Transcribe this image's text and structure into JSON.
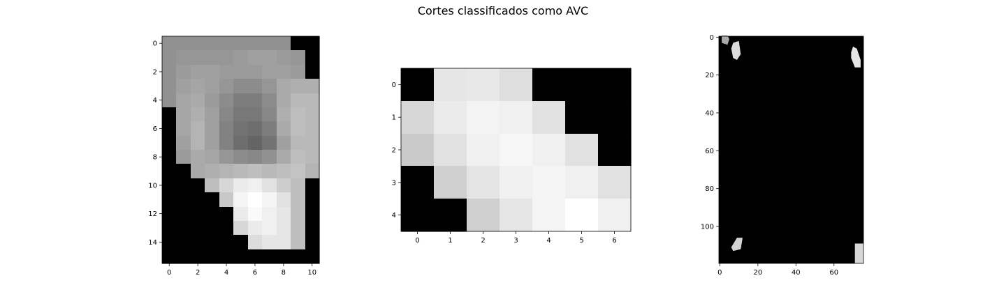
{
  "title": "Cortes classificados como AVC",
  "chart_data": [
    {
      "type": "heatmap",
      "panel": "left",
      "rows": 16,
      "cols": 11,
      "xlim": [
        -0.5,
        10.5
      ],
      "ylim": [
        -0.5,
        15.5
      ],
      "xticks": [
        "0",
        "2",
        "4",
        "6",
        "8",
        "10"
      ],
      "yticks": [
        "0",
        "2",
        "4",
        "6",
        "8",
        "10",
        "12",
        "14"
      ],
      "colormap": "gray",
      "values": [
        [
          145,
          145,
          145,
          145,
          145,
          145,
          145,
          145,
          145,
          0,
          0
        ],
        [
          145,
          150,
          150,
          150,
          150,
          155,
          160,
          160,
          155,
          150,
          0
        ],
        [
          145,
          155,
          160,
          160,
          155,
          155,
          155,
          160,
          160,
          155,
          0
        ],
        [
          145,
          160,
          165,
          160,
          150,
          140,
          140,
          150,
          170,
          175,
          175
        ],
        [
          145,
          165,
          170,
          155,
          140,
          125,
          125,
          140,
          170,
          185,
          185
        ],
        [
          0,
          165,
          175,
          160,
          135,
          120,
          120,
          135,
          175,
          190,
          185
        ],
        [
          0,
          165,
          180,
          160,
          130,
          115,
          110,
          125,
          170,
          190,
          185
        ],
        [
          0,
          160,
          180,
          160,
          130,
          110,
          100,
          115,
          160,
          185,
          185
        ],
        [
          0,
          155,
          170,
          165,
          150,
          140,
          135,
          145,
          170,
          190,
          185
        ],
        [
          0,
          0,
          170,
          175,
          180,
          185,
          190,
          185,
          190,
          195,
          180
        ],
        [
          0,
          0,
          0,
          190,
          215,
          235,
          240,
          225,
          205,
          190,
          0
        ],
        [
          0,
          0,
          0,
          0,
          200,
          245,
          255,
          245,
          225,
          190,
          0
        ],
        [
          0,
          0,
          0,
          0,
          0,
          235,
          250,
          240,
          230,
          190,
          0
        ],
        [
          0,
          0,
          0,
          0,
          0,
          215,
          235,
          240,
          230,
          190,
          0
        ],
        [
          0,
          0,
          0,
          0,
          0,
          0,
          220,
          230,
          230,
          190,
          0
        ],
        [
          0,
          0,
          0,
          0,
          0,
          0,
          0,
          0,
          0,
          0,
          0
        ]
      ]
    },
    {
      "type": "heatmap",
      "panel": "middle",
      "rows": 5,
      "cols": 7,
      "xlim": [
        -0.5,
        6.5
      ],
      "ylim": [
        -0.5,
        4.5
      ],
      "xticks": [
        "0",
        "1",
        "2",
        "3",
        "4",
        "5",
        "6"
      ],
      "yticks": [
        "0",
        "1",
        "2",
        "3",
        "4"
      ],
      "colormap": "gray",
      "values": [
        [
          0,
          230,
          232,
          222,
          0,
          0,
          0
        ],
        [
          215,
          235,
          243,
          240,
          225,
          0,
          0
        ],
        [
          202,
          225,
          240,
          246,
          240,
          225,
          0
        ],
        [
          0,
          208,
          228,
          240,
          245,
          240,
          225
        ],
        [
          0,
          0,
          208,
          230,
          245,
          255,
          240
        ]
      ]
    },
    {
      "type": "heatmap",
      "panel": "right",
      "rows": 120,
      "cols": 76,
      "xlim": [
        -0.5,
        75.5
      ],
      "ylim": [
        -0.5,
        119.5
      ],
      "xticks": [
        "0",
        "20",
        "40",
        "60"
      ],
      "yticks": [
        "0",
        "20",
        "40",
        "60",
        "80",
        "100"
      ],
      "colormap": "gray",
      "background": 0,
      "blobs": [
        {
          "shape": [
            [
              1,
              -1
            ],
            [
              4,
              -1
            ],
            [
              5,
              1
            ],
            [
              4,
              4
            ],
            [
              1,
              3
            ]
          ],
          "value": 170
        },
        {
          "shape": [
            [
              7,
              3
            ],
            [
              10,
              2
            ],
            [
              11,
              9
            ],
            [
              9,
              12
            ],
            [
              7,
              11
            ],
            [
              6,
              6
            ]
          ],
          "value": 220
        },
        {
          "shape": [
            [
              70,
              5
            ],
            [
              72,
              6
            ],
            [
              74,
              12
            ],
            [
              74,
              16
            ],
            [
              71,
              16
            ],
            [
              69,
              11
            ],
            [
              69,
              8
            ]
          ],
          "value": 230
        },
        {
          "shape": [
            [
              9,
              106
            ],
            [
              12,
              106
            ],
            [
              11,
              112
            ],
            [
              7,
              113
            ],
            [
              6,
              111
            ]
          ],
          "value": 210
        },
        {
          "shape": [
            [
              71,
              109
            ],
            [
              75.5,
              109
            ],
            [
              75.5,
              119.5
            ],
            [
              71,
              119.5
            ]
          ],
          "value": 215
        }
      ]
    }
  ]
}
